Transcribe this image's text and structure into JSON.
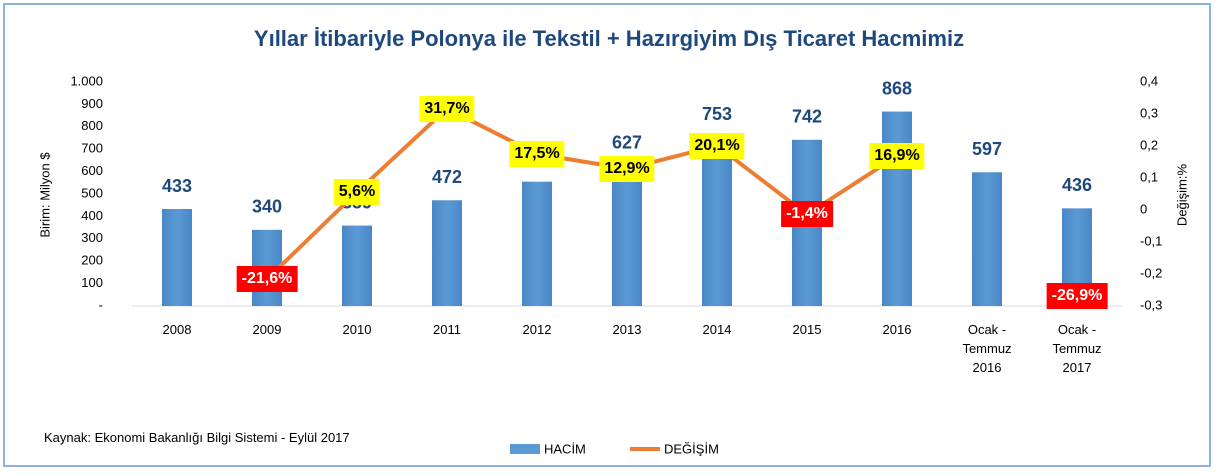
{
  "chart_data": {
    "type": "bar+line",
    "title": "Yıllar İtibariyle Polonya ile Tekstil + Hazırgiyim Dış Ticaret Hacmimiz",
    "ylabel": "Birim: Milyon $",
    "y2label": "Değişim:%",
    "note": "Kaynak: Ekonomi Bakanlığı Bilgi Sistemi - Eylül 2017",
    "categories": [
      "2008",
      "2009",
      "2010",
      "2011",
      "2012",
      "2013",
      "2014",
      "2015",
      "2016",
      "Ocak -\nTemmuz\n2016",
      "Ocak -\nTemmuz\n2017"
    ],
    "series": [
      {
        "name": "HACİM",
        "type": "bar",
        "color": "#5b9bd5",
        "values": [
          433,
          340,
          359,
          472,
          555,
          627,
          753,
          742,
          868,
          597,
          436
        ]
      },
      {
        "name": "DEĞİŞİM",
        "type": "line",
        "axis": "y2",
        "color": "#ed7d31",
        "values": [
          null,
          -0.216,
          0.056,
          0.317,
          0.175,
          0.129,
          0.201,
          -0.014,
          0.169,
          null,
          -0.269
        ],
        "value_labels": [
          null,
          "-21,6%",
          "5,6%",
          "31,7%",
          "17,5%",
          "12,9%",
          "20,1%",
          "-1,4%",
          "16,9%",
          null,
          "-26,9%"
        ]
      }
    ],
    "ylim": [
      0,
      1000
    ],
    "yticks": [
      {
        "value": 0,
        "label": "-"
      },
      100,
      200,
      300,
      400,
      500,
      600,
      700,
      800,
      900,
      {
        "value": 1000,
        "label": "1.000"
      }
    ],
    "y2lim": [
      -0.3,
      0.4
    ],
    "y2ticks": [
      {
        "value": -0.3,
        "label": "-0,3"
      },
      {
        "value": -0.2,
        "label": "-0,2"
      },
      {
        "value": -0.1,
        "label": "-0,1"
      },
      0,
      {
        "value": 0.1,
        "label": "0,1"
      },
      {
        "value": 0.2,
        "label": "0,2"
      },
      {
        "value": 0.3,
        "label": "0,3"
      },
      {
        "value": 0.4,
        "label": "0,4"
      }
    ],
    "legend": "bottom"
  }
}
